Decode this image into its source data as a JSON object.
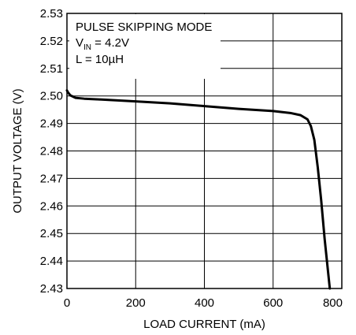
{
  "chart_data": {
    "type": "line",
    "xlabel": "LOAD CURRENT (mA)",
    "ylabel": "OUTPUT VOLTAGE (V)",
    "xlim": [
      0,
      800
    ],
    "ylim": [
      2.43,
      2.53
    ],
    "x_ticks": [
      0,
      200,
      400,
      600,
      800
    ],
    "x_tick_labels": [
      "0",
      "200",
      "400",
      "600",
      "800"
    ],
    "y_ticks": [
      2.43,
      2.44,
      2.45,
      2.46,
      2.47,
      2.48,
      2.49,
      2.5,
      2.51,
      2.52,
      2.53
    ],
    "y_tick_labels": [
      "2.43",
      "2.44",
      "2.45",
      "2.46",
      "2.47",
      "2.48",
      "2.49",
      "2.50",
      "2.51",
      "2.52",
      "2.53"
    ],
    "grid": true,
    "annotations": {
      "line1": "PULSE SKIPPING MODE",
      "line2_prefix": "V",
      "line2_sub": "IN",
      "line2_suffix": " = 4.2V",
      "line3": "L = 10µH"
    },
    "series": [
      {
        "x": [
          0,
          3,
          10,
          25,
          50,
          100,
          200,
          300,
          400,
          500,
          600,
          650,
          680,
          700,
          710,
          720,
          730,
          740,
          750,
          760,
          765
        ],
        "y": [
          2.502,
          2.5013,
          2.5002,
          2.4993,
          2.499,
          2.4987,
          2.498,
          2.4973,
          2.4963,
          2.4953,
          2.4945,
          2.4938,
          2.493,
          2.4915,
          2.489,
          2.484,
          2.474,
          2.462,
          2.448,
          2.436,
          2.43
        ]
      }
    ]
  }
}
